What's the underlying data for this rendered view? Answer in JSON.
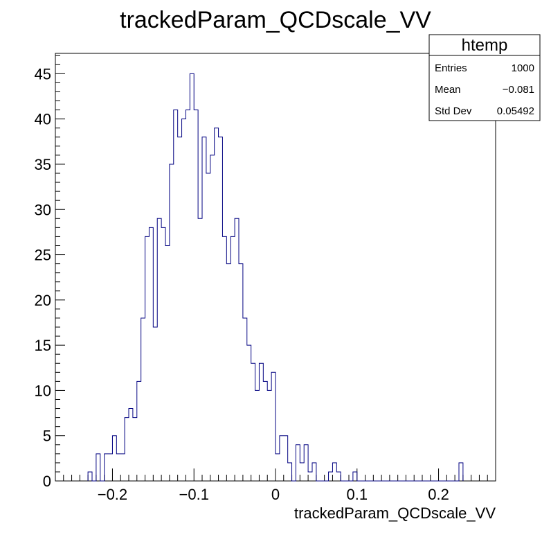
{
  "chart_data": {
    "type": "histogram",
    "title": "trackedParam_QCDscale_VV",
    "xlabel": "trackedParam_QCDscale_VV",
    "ylabel": "",
    "xlim": [
      -0.27,
      0.27
    ],
    "ylim": [
      0,
      47.25
    ],
    "bin_width": 0.005,
    "bins_start": -0.23,
    "values": [
      1,
      0,
      3,
      0,
      3,
      3,
      5,
      3,
      3,
      7,
      8,
      7,
      11,
      18,
      27,
      28,
      17,
      29,
      28,
      26,
      35,
      41,
      38,
      40,
      41,
      45,
      41,
      29,
      38,
      34,
      36,
      39,
      38,
      27,
      24,
      27,
      29,
      24,
      18,
      15,
      13,
      10,
      13,
      11,
      10,
      12,
      3,
      5,
      5,
      2,
      0,
      4,
      2,
      4,
      1,
      2,
      0,
      0,
      0,
      1,
      2,
      1,
      0,
      0,
      0,
      1,
      0,
      0,
      0,
      0,
      0,
      0,
      0,
      0,
      0,
      0,
      0,
      0,
      0,
      0,
      0,
      0,
      0,
      0,
      0,
      0,
      0,
      0,
      0,
      0,
      0,
      2
    ],
    "x_ticks": [
      "−0.2",
      "−0.1",
      "0",
      "0.1",
      "0.2"
    ],
    "y_ticks": [
      "0",
      "5",
      "10",
      "15",
      "20",
      "25",
      "30",
      "35",
      "40",
      "45"
    ],
    "line_color": "#000080",
    "grid": false
  },
  "stats_box": {
    "name": "htemp",
    "entries_label": "Entries",
    "entries_value": "1000",
    "mean_label": "Mean",
    "mean_value": "−0.081",
    "stddev_label": "Std Dev",
    "stddev_value": "0.05492"
  }
}
